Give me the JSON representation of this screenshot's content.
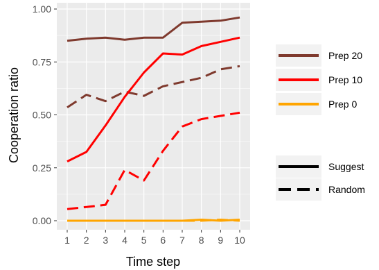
{
  "chart_data": {
    "type": "line",
    "xlabel": "Time step",
    "ylabel": "Cooperation ratio",
    "xlim": [
      1,
      10
    ],
    "ylim": [
      0,
      1
    ],
    "x_ticks": [
      1,
      2,
      3,
      4,
      5,
      6,
      7,
      8,
      9,
      10
    ],
    "y_ticks": [
      "0.00",
      "0.25",
      "0.50",
      "0.75",
      "1.00"
    ],
    "y_tick_values": [
      0,
      0.25,
      0.5,
      0.75,
      1.0
    ],
    "grid": true,
    "legend_placement": "right",
    "color_legend": [
      {
        "label": "Prep 20",
        "color": "#7f3a2e"
      },
      {
        "label": "Prep 10",
        "color": "#ff0000"
      },
      {
        "label": "Prep 0",
        "color": "#ffa500"
      }
    ],
    "linetype_legend": [
      {
        "label": "Suggest",
        "dash": "solid"
      },
      {
        "label": "Random",
        "dash": "dashed"
      }
    ],
    "series": [
      {
        "group": "Prep 20",
        "type": "Suggest",
        "color": "#7f3a2e",
        "dash": "solid",
        "x": [
          1,
          2,
          3,
          4,
          5,
          6,
          7,
          8,
          9,
          10
        ],
        "values": [
          0.85,
          0.86,
          0.865,
          0.855,
          0.865,
          0.865,
          0.935,
          0.94,
          0.945,
          0.96
        ]
      },
      {
        "group": "Prep 20",
        "type": "Random",
        "color": "#7f3a2e",
        "dash": "dashed",
        "x": [
          1,
          2,
          3,
          4,
          5,
          6,
          7,
          8,
          9,
          10
        ],
        "values": [
          0.535,
          0.595,
          0.565,
          0.61,
          0.59,
          0.635,
          0.655,
          0.675,
          0.715,
          0.73
        ]
      },
      {
        "group": "Prep 10",
        "type": "Suggest",
        "color": "#ff0000",
        "dash": "solid",
        "x": [
          1,
          2,
          3,
          4,
          5,
          6,
          7,
          8,
          9,
          10
        ],
        "values": [
          0.28,
          0.325,
          0.45,
          0.585,
          0.7,
          0.79,
          0.785,
          0.825,
          0.845,
          0.865
        ]
      },
      {
        "group": "Prep 10",
        "type": "Random",
        "color": "#ff0000",
        "dash": "dashed",
        "x": [
          1,
          2,
          3,
          4,
          5,
          6,
          7,
          8,
          9,
          10
        ],
        "values": [
          0.055,
          0.065,
          0.075,
          0.24,
          0.19,
          0.33,
          0.445,
          0.48,
          0.495,
          0.51
        ]
      },
      {
        "group": "Prep 0",
        "type": "Suggest",
        "color": "#ffa500",
        "dash": "solid",
        "x": [
          1,
          2,
          3,
          4,
          5,
          6,
          7,
          8,
          9,
          10
        ],
        "values": [
          0,
          0,
          0,
          0,
          0,
          0,
          0,
          0.005,
          0,
          0.005
        ]
      },
      {
        "group": "Prep 0",
        "type": "Random",
        "color": "#ffa500",
        "dash": "dashed",
        "x": [
          1,
          2,
          3,
          4,
          5,
          6,
          7,
          8,
          9,
          10
        ],
        "values": [
          0,
          0,
          0,
          0,
          0,
          0,
          0,
          0,
          0.005,
          0
        ]
      }
    ]
  }
}
